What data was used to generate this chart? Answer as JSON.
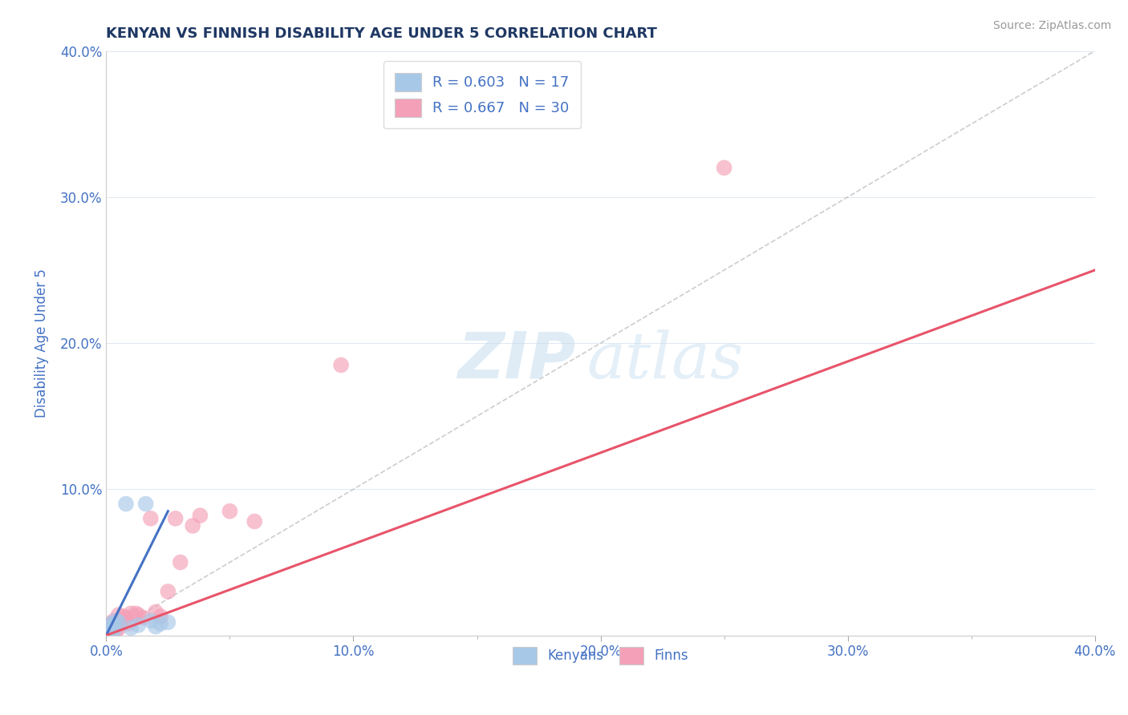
{
  "title": "KENYAN VS FINNISH DISABILITY AGE UNDER 5 CORRELATION CHART",
  "source": "Source: ZipAtlas.com",
  "ylabel": "Disability Age Under 5",
  "xlabel": "",
  "xlim": [
    0.0,
    0.4
  ],
  "ylim": [
    0.0,
    0.4
  ],
  "xtick_labels": [
    "0.0%",
    "",
    "10.0%",
    "",
    "20.0%",
    "",
    "30.0%",
    "",
    "40.0%"
  ],
  "xtick_vals": [
    0.0,
    0.05,
    0.1,
    0.15,
    0.2,
    0.25,
    0.3,
    0.35,
    0.4
  ],
  "ytick_labels": [
    "",
    "10.0%",
    "20.0%",
    "30.0%",
    "40.0%"
  ],
  "ytick_vals": [
    0.0,
    0.1,
    0.2,
    0.3,
    0.4
  ],
  "kenyan_R": 0.603,
  "kenyan_N": 17,
  "finn_R": 0.667,
  "finn_N": 30,
  "kenyan_color": "#a8c8e8",
  "finn_color": "#f4a0b8",
  "kenyan_line_color": "#4472c4",
  "finn_line_color": "#e8546a",
  "diagonal_color": "#b8b8b8",
  "watermark_zip": "ZIP",
  "watermark_atlas": "atlas",
  "title_color": "#1f3864",
  "axis_label_color": "#4472c4",
  "kenyan_points_x": [
    0.001,
    0.001,
    0.002,
    0.002,
    0.002,
    0.003,
    0.003,
    0.004,
    0.005,
    0.008,
    0.01,
    0.013,
    0.016,
    0.018,
    0.02,
    0.022,
    0.025
  ],
  "kenyan_points_y": [
    0.002,
    0.004,
    0.002,
    0.006,
    0.008,
    0.003,
    0.007,
    0.01,
    0.009,
    0.09,
    0.005,
    0.007,
    0.09,
    0.01,
    0.006,
    0.008,
    0.009
  ],
  "finn_points_x": [
    0.001,
    0.001,
    0.002,
    0.002,
    0.003,
    0.003,
    0.004,
    0.004,
    0.005,
    0.005,
    0.006,
    0.007,
    0.008,
    0.009,
    0.01,
    0.012,
    0.013,
    0.015,
    0.018,
    0.02,
    0.022,
    0.025,
    0.028,
    0.03,
    0.035,
    0.038,
    0.05,
    0.06,
    0.095,
    0.25
  ],
  "finn_points_y": [
    0.003,
    0.006,
    0.004,
    0.008,
    0.005,
    0.01,
    0.003,
    0.007,
    0.014,
    0.005,
    0.01,
    0.013,
    0.012,
    0.008,
    0.015,
    0.015,
    0.014,
    0.012,
    0.08,
    0.016,
    0.013,
    0.03,
    0.08,
    0.05,
    0.075,
    0.082,
    0.085,
    0.078,
    0.185,
    0.32
  ],
  "kenyan_line_x": [
    0.0,
    0.025
  ],
  "kenyan_line_y": [
    0.0,
    0.085
  ],
  "finn_line_x": [
    0.0,
    0.4
  ],
  "finn_line_y": [
    0.0,
    0.25
  ]
}
